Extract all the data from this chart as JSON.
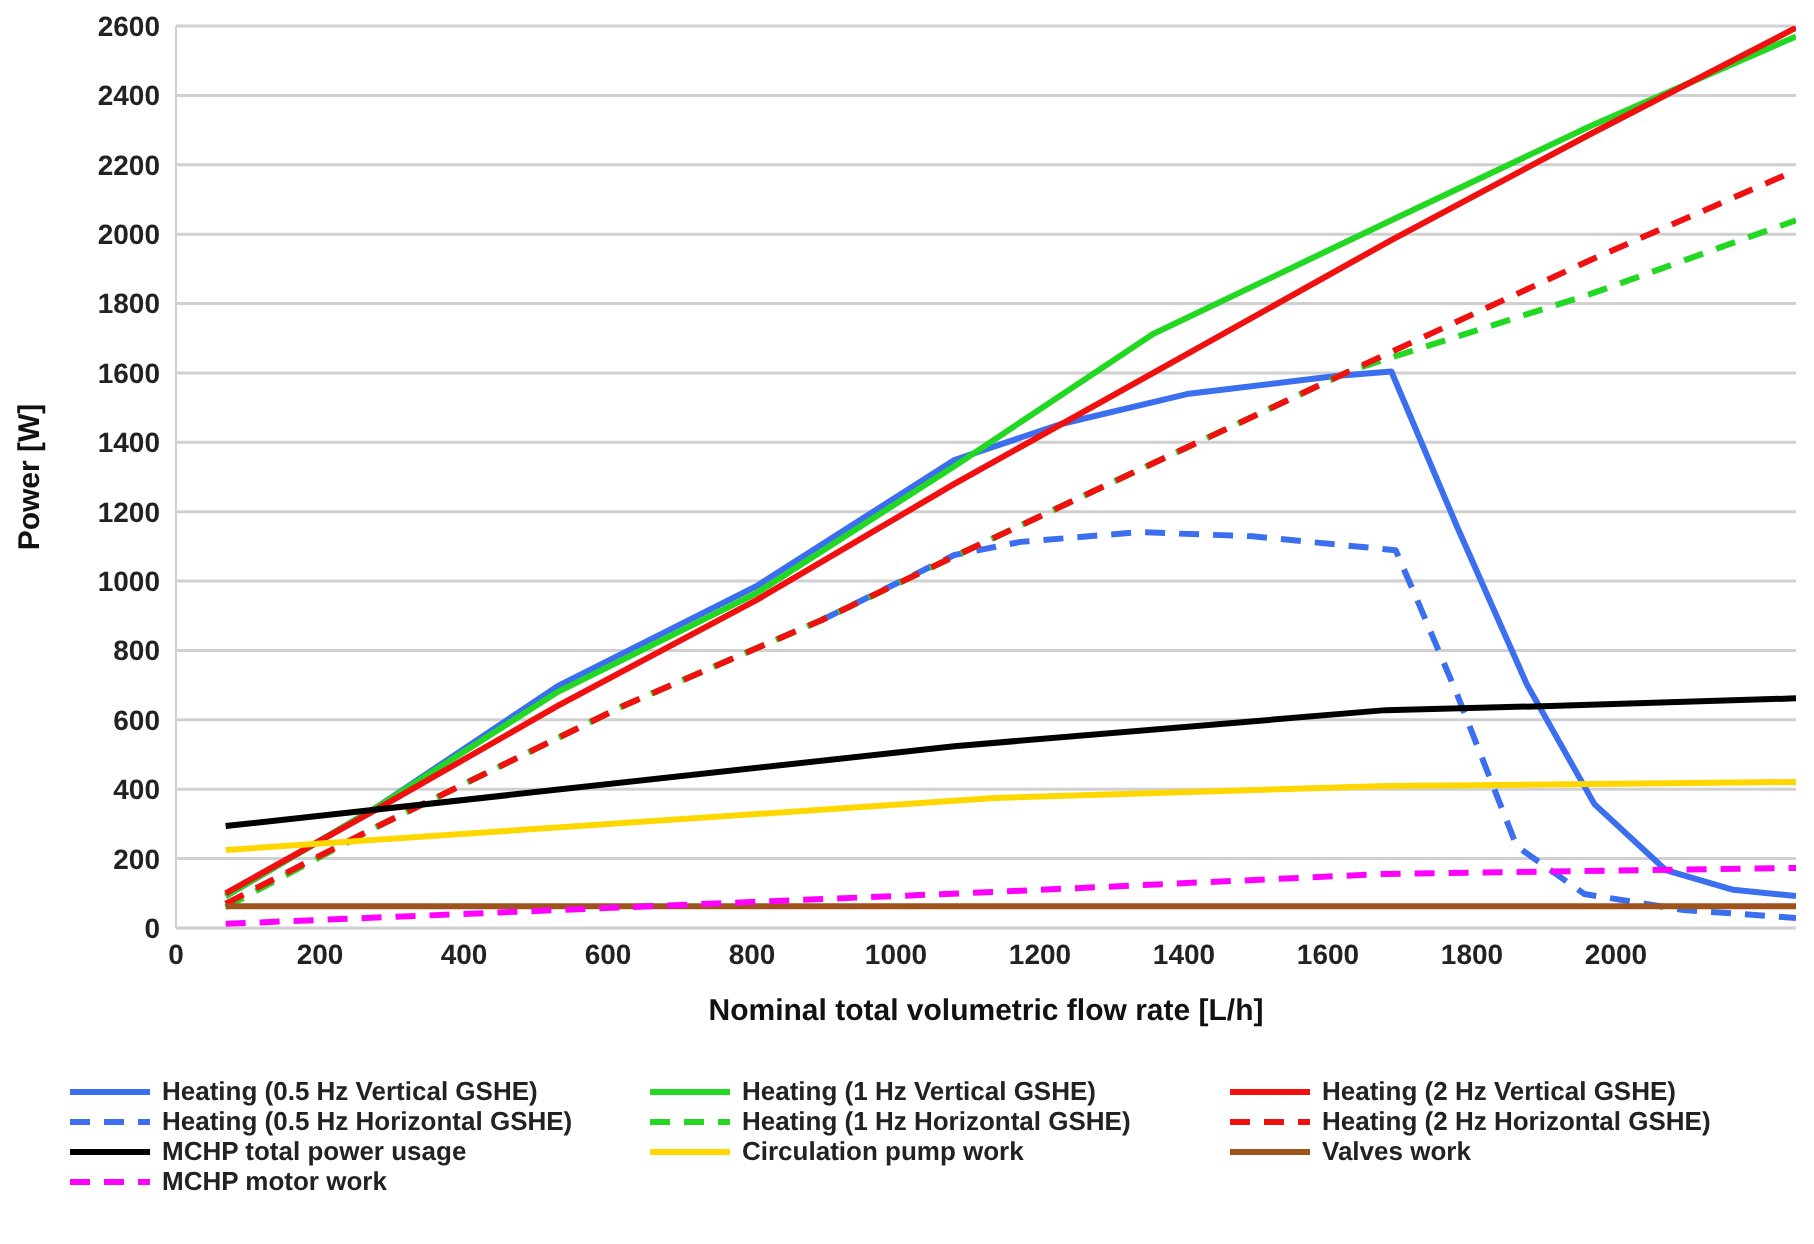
{
  "chart_data": {
    "type": "line",
    "xlabel": "Nominal total volumetric flow rate [L/h]",
    "ylabel": "Power [W]",
    "xlim": [
      0,
      2250
    ],
    "xticks": [
      0,
      200,
      400,
      600,
      800,
      1000,
      1200,
      1400,
      1600,
      1800,
      2000
    ],
    "ylim": [
      0,
      2600
    ],
    "yticks": [
      0,
      200,
      400,
      600,
      800,
      1000,
      1200,
      1400,
      1600,
      1800,
      2000,
      2200,
      2400,
      2600
    ],
    "grid": "y",
    "legend": "bottom",
    "marker": "none",
    "line_style": "solid",
    "series": [
      {
        "name": "Heating (0.5 Hz Vertical GSHE)",
        "color": "#3b6ff0",
        "x": [
          69,
          281,
          530,
          806,
          1081,
          1228,
          1404,
          1611,
          1688,
          1779,
          1876,
          1970,
          2069,
          2163,
          2250
        ],
        "values": [
          92,
          351,
          697,
          985,
          1349,
          1452,
          1539,
          1591,
          1604,
          1158,
          703,
          357,
          167,
          110,
          92
        ]
      },
      {
        "name": "Heating (1 Hz Vertical GSHE)",
        "color": "#22d822",
        "x": [
          69,
          281,
          530,
          806,
          1081,
          1357,
          1688,
          1964,
          2250
        ],
        "values": [
          92,
          351,
          680,
          965,
          1331,
          1712,
          2040,
          2311,
          2570
        ]
      },
      {
        "name": "Heating (2 Hz Vertical GSHE)",
        "color": "#f01010",
        "x": [
          69,
          281,
          530,
          806,
          1081,
          1688,
          1964,
          2250
        ],
        "values": [
          100,
          345,
          640,
          945,
          1280,
          1983,
          2288,
          2595
        ]
      },
      {
        "name": "Heating (0.5 Hz Horizontal GSHE)",
        "color": "#3b6ff0",
        "line_style": "dashed",
        "x": [
          897,
          1081,
          1173,
          1338,
          1495,
          1694,
          1724,
          1779,
          1862,
          1956,
          2094,
          2250
        ],
        "values": [
          888,
          1075,
          1113,
          1141,
          1129,
          1089,
          945,
          675,
          236,
          98,
          52,
          29
        ]
      },
      {
        "name": "Heating (1 Hz Horizontal GSHE)",
        "color": "#22d822",
        "line_style": "dashed",
        "x": [
          69,
          281,
          621,
          897,
          1081,
          1633,
          1964,
          2250
        ],
        "values": [
          60,
          294,
          640,
          888,
          1071,
          1608,
          1827,
          2040
        ]
      },
      {
        "name": "Heating (2 Hz Horizontal GSHE)",
        "color": "#f01010",
        "line_style": "dashed",
        "x": [
          69,
          281,
          621,
          897,
          1081,
          1633,
          1964,
          2250
        ],
        "values": [
          70,
          294,
          640,
          888,
          1071,
          1608,
          1925,
          2184
        ]
      },
      {
        "name": "MCHP total power usage",
        "color": "#000000",
        "x": [
          69,
          1081,
          1680,
          1909,
          2250
        ],
        "values": [
          294,
          524,
          628,
          640,
          662
        ]
      },
      {
        "name": "Circulation pump work",
        "color": "#ffd700",
        "x": [
          69,
          1137,
          1680,
          2250
        ],
        "values": [
          225,
          375,
          409,
          421
        ]
      },
      {
        "name": "Valves work",
        "color": "#a0521c",
        "x": [
          69,
          2250
        ],
        "values": [
          63,
          63
        ]
      },
      {
        "name": "MCHP motor work",
        "color": "#ff00ff",
        "line_style": "dashed",
        "x": [
          69,
          1137,
          1680,
          2250
        ],
        "values": [
          12,
          104,
          156,
          173
        ]
      }
    ]
  }
}
